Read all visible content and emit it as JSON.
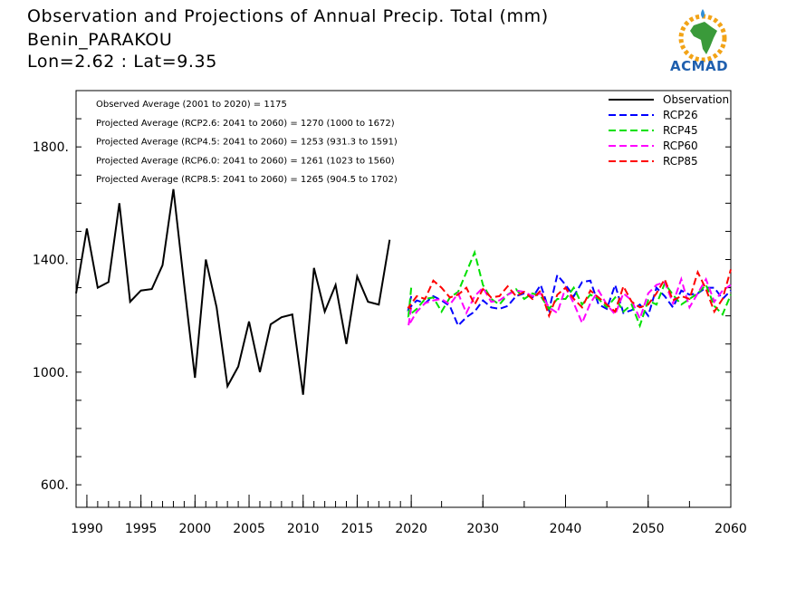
{
  "header": {
    "title": "Observation and Projections of Annual Precip. Total (mm)",
    "station": "Benin_PARAKOU",
    "coords": "Lon=2.62 : Lat=9.35"
  },
  "logo": {
    "text": "ACMAD",
    "colors": {
      "text": "#1f5fae",
      "africa": "#3a9a3a",
      "ring": "#f2a316",
      "drop": "#2f8fd8"
    }
  },
  "chart_data": {
    "type": "line",
    "xlim": [
      1989,
      2060
    ],
    "ylim": [
      520,
      2000
    ],
    "yticks": [
      600,
      1000,
      1400,
      1800
    ],
    "ytick_labels": [
      "600.",
      "1000.",
      "1400.",
      "1800."
    ],
    "xticks_left": [
      1990,
      1995,
      2000,
      2005,
      2010,
      2015,
      2020
    ],
    "xticks_right": [
      2030,
      2040,
      2050,
      2060
    ],
    "annotations": [
      "Observed Average (2001 to 2020) = 1175",
      "Projected Average (RCP2.6: 2041 to 2060) = 1270 (1000 to 1672)",
      "Projected Average (RCP4.5: 2041 to 2060) = 1253 (931.3 to 1591)",
      "Projected Average (RCP6.0: 2041 to 2060) = 1261 (1023 to 1560)",
      "Projected Average (RCP8.5: 2041 to 2060) = 1265 (904.5 to 1702)"
    ],
    "legend_position": "top-right",
    "series": [
      {
        "name": "Observation",
        "color": "#000000",
        "dash": false,
        "x": [
          1989,
          1990,
          1991,
          1992,
          1993,
          1994,
          1995,
          1996,
          1997,
          1998,
          1999,
          2000,
          2001,
          2002,
          2003,
          2004,
          2005,
          2006,
          2007,
          2008,
          2009,
          2010,
          2011,
          2012,
          2013,
          2014,
          2015,
          2016,
          2017,
          2018,
          2019,
          2020
        ],
        "y": [
          1280,
          1510,
          1300,
          1320,
          1600,
          1250,
          1290,
          1295,
          1380,
          1650,
          1310,
          980,
          1400,
          1230,
          950,
          1020,
          1180,
          1000,
          1170,
          1195,
          1205,
          920,
          1370,
          1215,
          1310,
          1100,
          1340,
          1250,
          1240,
          1470,
          null,
          null
        ]
      },
      {
        "name": "RCP26",
        "color": "#0000ff",
        "dash": true,
        "x": [
          2020,
          2021,
          2022,
          2023,
          2024,
          2025,
          2026,
          2027,
          2028,
          2029,
          2030,
          2031,
          2032,
          2033,
          2034,
          2035,
          2036,
          2037,
          2038,
          2039,
          2040,
          2041,
          2042,
          2043,
          2044,
          2045,
          2046,
          2047,
          2048,
          2049,
          2050,
          2051,
          2052,
          2053,
          2054,
          2055,
          2056,
          2057,
          2058,
          2059,
          2060
        ],
        "y": [
          1270,
          1225,
          1255,
          1245,
          1270,
          1255,
          1235,
          1165,
          1195,
          1215,
          1255,
          1230,
          1225,
          1235,
          1270,
          1280,
          1265,
          1310,
          1220,
          1345,
          1310,
          1270,
          1320,
          1325,
          1240,
          1225,
          1310,
          1210,
          1220,
          1240,
          1200,
          1300,
          1270,
          1230,
          1290,
          1275,
          1280,
          1300,
          1300,
          1260,
          1290
        ]
      },
      {
        "name": "RCP45",
        "color": "#00e000",
        "dash": true,
        "x": [
          2020,
          2021,
          2022,
          2023,
          2024,
          2025,
          2026,
          2027,
          2028,
          2029,
          2030,
          2031,
          2032,
          2033,
          2034,
          2035,
          2036,
          2037,
          2038,
          2039,
          2040,
          2041,
          2042,
          2043,
          2044,
          2045,
          2046,
          2047,
          2048,
          2049,
          2050,
          2051,
          2052,
          2053,
          2054,
          2055,
          2056,
          2057,
          2058,
          2059,
          2060
        ],
        "y": [
          1300,
          1200,
          1225,
          1260,
          1265,
          1215,
          1265,
          1285,
          1355,
          1425,
          1310,
          1260,
          1240,
          1275,
          1295,
          1260,
          1280,
          1270,
          1225,
          1260,
          1260,
          1300,
          1240,
          1275,
          1260,
          1230,
          1265,
          1215,
          1240,
          1165,
          1255,
          1240,
          1315,
          1275,
          1240,
          1260,
          1280,
          1310,
          1235,
          1205,
          1275
        ]
      },
      {
        "name": "RCP60",
        "color": "#ff00ff",
        "dash": true,
        "x": [
          2020,
          2021,
          2022,
          2023,
          2024,
          2025,
          2026,
          2027,
          2028,
          2029,
          2030,
          2031,
          2032,
          2033,
          2034,
          2035,
          2036,
          2037,
          2038,
          2039,
          2040,
          2041,
          2042,
          2043,
          2044,
          2045,
          2046,
          2047,
          2048,
          2049,
          2050,
          2051,
          2052,
          2053,
          2054,
          2055,
          2056,
          2057,
          2058,
          2059,
          2060
        ],
        "y": [
          1230,
          1165,
          1215,
          1245,
          1255,
          1260,
          1240,
          1280,
          1210,
          1270,
          1300,
          1250,
          1255,
          1275,
          1290,
          1285,
          1270,
          1280,
          1230,
          1210,
          1300,
          1245,
          1175,
          1245,
          1290,
          1240,
          1205,
          1280,
          1255,
          1190,
          1280,
          1310,
          1320,
          1245,
          1330,
          1230,
          1280,
          1330,
          1250,
          1290,
          1310
        ]
      },
      {
        "name": "RCP85",
        "color": "#ff0000",
        "dash": true,
        "x": [
          2020,
          2021,
          2022,
          2023,
          2024,
          2025,
          2026,
          2027,
          2028,
          2029,
          2030,
          2031,
          2032,
          2033,
          2034,
          2035,
          2036,
          2037,
          2038,
          2039,
          2040,
          2041,
          2042,
          2043,
          2044,
          2045,
          2046,
          2047,
          2048,
          2049,
          2050,
          2051,
          2052,
          2053,
          2054,
          2055,
          2056,
          2057,
          2058,
          2059,
          2060
        ],
        "y": [
          1225,
          1230,
          1270,
          1260,
          1325,
          1300,
          1265,
          1275,
          1300,
          1240,
          1295,
          1265,
          1270,
          1305,
          1270,
          1285,
          1260,
          1290,
          1200,
          1275,
          1300,
          1260,
          1230,
          1290,
          1265,
          1240,
          1215,
          1305,
          1250,
          1230,
          1240,
          1280,
          1330,
          1255,
          1270,
          1260,
          1355,
          1295,
          1215,
          1260,
          1365
        ]
      }
    ]
  }
}
